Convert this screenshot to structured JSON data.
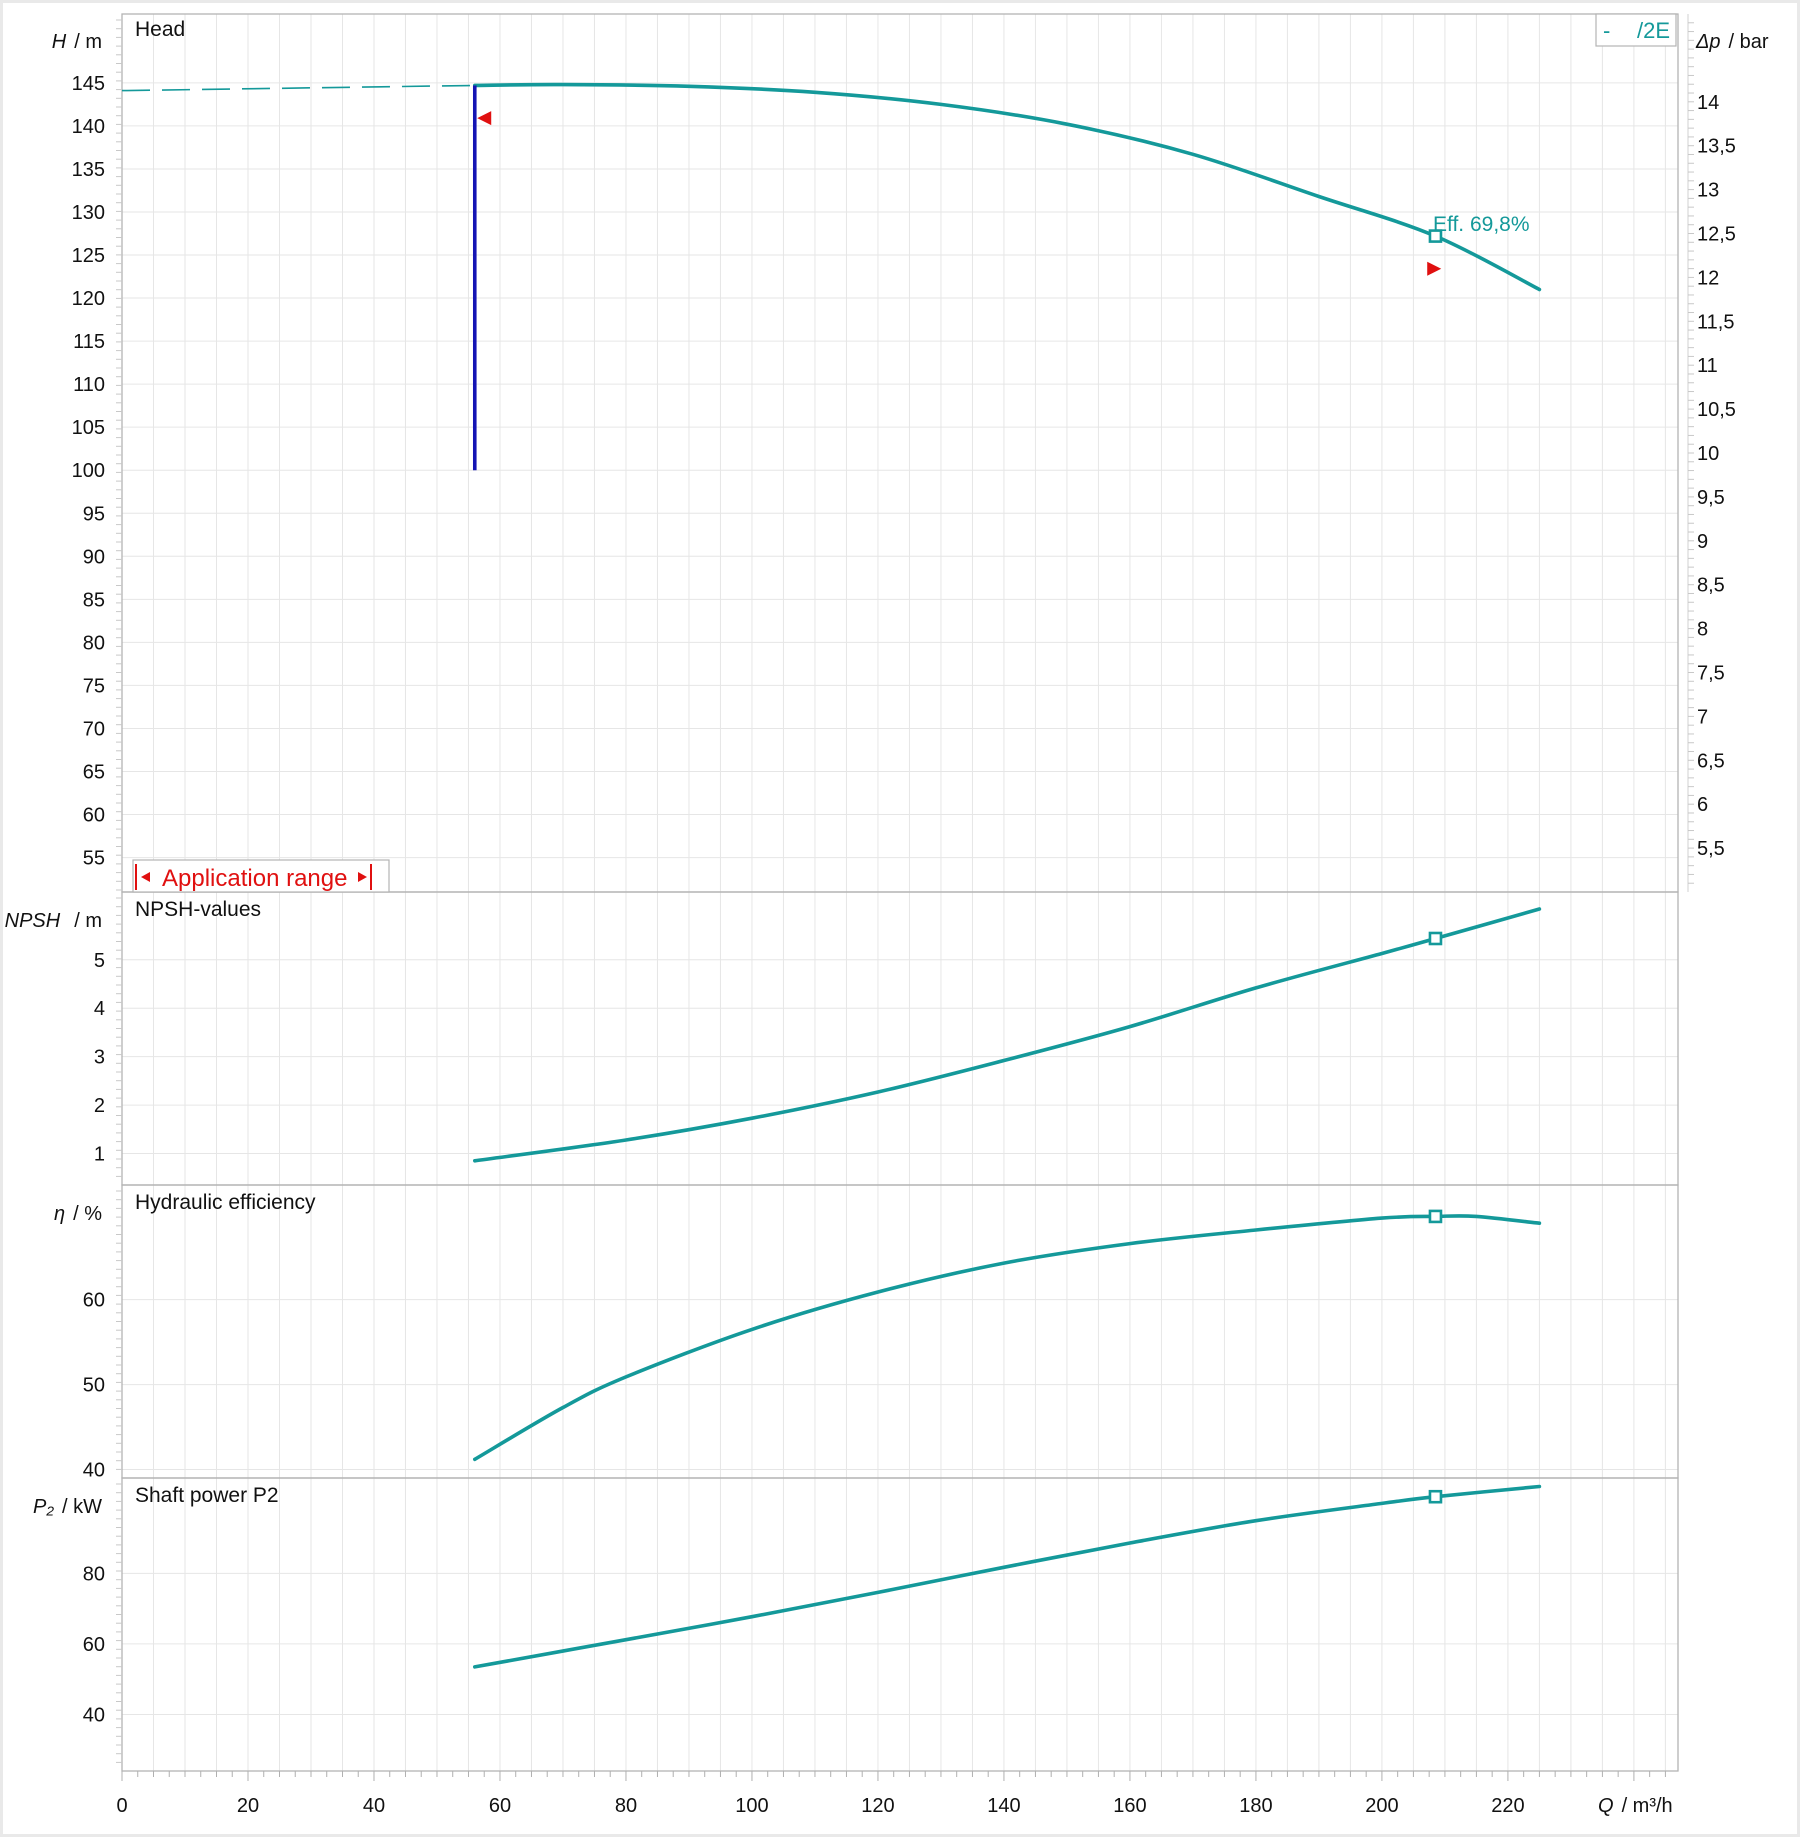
{
  "colors": {
    "curve": "#14999a",
    "range_line": "#1414b4",
    "marker_red": "#e01010",
    "frame": "#b4b4b4",
    "grid": "#e6e6e6",
    "outer_bg": "#e9e9e9",
    "plot_bg": "#ffffff"
  },
  "chart_data": [
    {
      "type": "line",
      "panel": "head",
      "title": "Head",
      "ylabel": "H",
      "yunit": "/ m",
      "y2label": "Δp",
      "y2unit": "/ bar",
      "xlim": [
        0,
        247
      ],
      "ylim": [
        51,
        153
      ],
      "y2lim": [
        5,
        15
      ],
      "yticks": [
        55,
        60,
        65,
        70,
        75,
        80,
        85,
        90,
        95,
        100,
        105,
        110,
        115,
        120,
        125,
        130,
        135,
        140,
        145
      ],
      "y2ticks": [
        "5,5",
        "6",
        "6,5",
        "7",
        "7,5",
        "8",
        "8,5",
        "9",
        "9,5",
        "10",
        "10,5",
        "11",
        "11,5",
        "12",
        "12,5",
        "13",
        "13,5",
        "14"
      ],
      "legend": {
        "dash": "-",
        "label": "/2E",
        "position": "top-right"
      },
      "series": [
        {
          "name": "/2E",
          "points": [
            [
              56,
              144.7
            ],
            [
              70,
              144.8
            ],
            [
              90,
              144.6
            ],
            [
              110,
              143.9
            ],
            [
              130,
              142.5
            ],
            [
              150,
              140.2
            ],
            [
              170,
              136.7
            ],
            [
              190,
              131.8
            ],
            [
              208.5,
              127.2
            ],
            [
              225,
              121
            ]
          ]
        }
      ],
      "extrapolation": {
        "points": [
          [
            0,
            144.1
          ],
          [
            56,
            144.7
          ]
        ],
        "style": "dashed"
      },
      "range_line": {
        "x": 56,
        "y_from": 100,
        "y_to": 144.7
      },
      "markers": [
        {
          "shape": "triangle-left",
          "x": 57.5,
          "y": 140.9
        },
        {
          "shape": "triangle-right",
          "x": 208.3,
          "y": 123.4
        }
      ],
      "operating_point": {
        "x": 208.5,
        "y": 127.2
      },
      "annotation": "Eff.  69,8%",
      "application_range_label": "Application range",
      "grid": true
    },
    {
      "type": "line",
      "panel": "npsh",
      "title": "NPSH-values",
      "ylabel": "NPSH",
      "yunit": "/ m",
      "ylim": [
        0.35,
        6.4
      ],
      "yticks": [
        1,
        2,
        3,
        4,
        5
      ],
      "series": [
        {
          "name": "/2E",
          "points": [
            [
              56,
              0.85
            ],
            [
              80,
              1.28
            ],
            [
              100,
              1.73
            ],
            [
              120,
              2.27
            ],
            [
              140,
              2.92
            ],
            [
              160,
              3.62
            ],
            [
              180,
              4.42
            ],
            [
              200,
              5.13
            ],
            [
              208.5,
              5.44
            ],
            [
              225,
              6.05
            ]
          ]
        }
      ],
      "operating_point": {
        "x": 208.5,
        "y": 5.44
      },
      "grid": true
    },
    {
      "type": "line",
      "panel": "efficiency",
      "title": "Hydraulic efficiency",
      "ylabel": "η",
      "yunit": "/ %",
      "ylim": [
        39,
        73.5
      ],
      "yticks": [
        40,
        50,
        60
      ],
      "series": [
        {
          "name": "/2E",
          "points": [
            [
              56,
              41.2
            ],
            [
              70,
              47.3
            ],
            [
              80,
              50.9
            ],
            [
              100,
              56.5
            ],
            [
              120,
              60.9
            ],
            [
              140,
              64.3
            ],
            [
              160,
              66.6
            ],
            [
              180,
              68.2
            ],
            [
              200,
              69.6
            ],
            [
              208.5,
              69.8
            ],
            [
              215,
              69.8
            ],
            [
              225,
              69
            ]
          ]
        }
      ],
      "operating_point": {
        "x": 208.5,
        "y": 69.8
      },
      "grid": true
    },
    {
      "type": "line",
      "panel": "power",
      "title": "Shaft power P2",
      "ylabel": "P₂",
      "yunit": "/ kW",
      "ylim": [
        24,
        107
      ],
      "yticks": [
        40,
        60,
        80
      ],
      "series": [
        {
          "name": "/2E",
          "points": [
            [
              56,
              53.5
            ],
            [
              80,
              61.2
            ],
            [
              100,
              67.7
            ],
            [
              120,
              74.6
            ],
            [
              140,
              81.7
            ],
            [
              160,
              88.6
            ],
            [
              180,
              94.9
            ],
            [
              200,
              99.8
            ],
            [
              208.5,
              101.7
            ],
            [
              225,
              104.6
            ]
          ]
        }
      ],
      "operating_point": {
        "x": 208.5,
        "y": 101.7
      },
      "grid": true
    }
  ],
  "x_axis": {
    "label": "Q",
    "unit": "/ m³/h",
    "ticks": [
      0,
      20,
      40,
      60,
      80,
      100,
      120,
      140,
      160,
      180,
      200,
      220
    ]
  }
}
